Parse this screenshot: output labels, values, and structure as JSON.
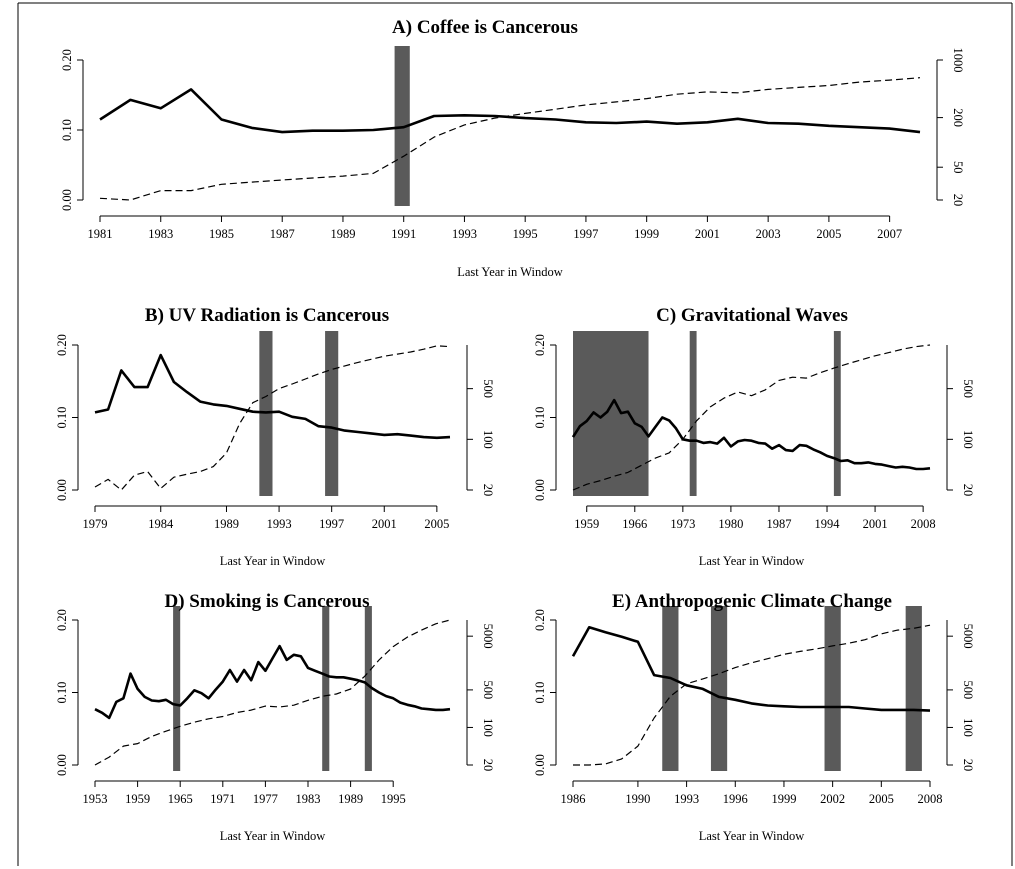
{
  "chart_data": [
    {
      "id": "A",
      "type": "line",
      "title": "A) Coffee is Cancerous",
      "xlabel": "Last Year in Window",
      "xlim": [
        1981,
        2008
      ],
      "xticks": [
        1981,
        1983,
        1985,
        1987,
        1989,
        1991,
        1993,
        1995,
        1997,
        1999,
        2001,
        2003,
        2005,
        2007
      ],
      "ylim": [
        0,
        0.2
      ],
      "yticks": [
        "0.00",
        "0.10",
        "0.20"
      ],
      "y2_scale": "log",
      "y2lim": [
        20,
        1000
      ],
      "y2ticks": [
        "20",
        "50",
        "200",
        "1000"
      ],
      "shaded": [
        [
          1990.7,
          1991.2
        ]
      ],
      "series": [
        {
          "style": "solid",
          "axis": "left",
          "x": [
            1981,
            1982,
            1983,
            1984,
            1985,
            1986,
            1987,
            1988,
            1989,
            1990,
            1991,
            1992,
            1993,
            1994,
            1995,
            1996,
            1997,
            1998,
            1999,
            2000,
            2001,
            2002,
            2003,
            2004,
            2005,
            2006,
            2007,
            2008
          ],
          "y": [
            0.115,
            0.143,
            0.131,
            0.158,
            0.115,
            0.103,
            0.097,
            0.099,
            0.099,
            0.1,
            0.104,
            0.12,
            0.121,
            0.12,
            0.117,
            0.115,
            0.111,
            0.11,
            0.112,
            0.109,
            0.111,
            0.116,
            0.11,
            0.109,
            0.106,
            0.104,
            0.102,
            0.097
          ]
        },
        {
          "style": "dashed",
          "axis": "right",
          "x": [
            1981,
            1982,
            1983,
            1984,
            1985,
            1986,
            1987,
            1988,
            1989,
            1990,
            1991,
            1992,
            1993,
            1994,
            1995,
            1996,
            1997,
            1998,
            1999,
            2000,
            2001,
            2002,
            2003,
            2004,
            2005,
            2006,
            2007,
            2008
          ],
          "y": [
            21,
            20,
            26,
            26,
            31,
            33,
            35,
            37,
            39,
            42,
            68,
            116,
            163,
            197,
            225,
            253,
            285,
            310,
            340,
            385,
            410,
            400,
            440,
            465,
            490,
            540,
            570,
            610
          ]
        }
      ]
    },
    {
      "id": "B",
      "type": "line",
      "title": "B) UV Radiation is Cancerous",
      "xlabel": "Last Year in Window",
      "xlim": [
        1979,
        2006
      ],
      "xticks": [
        1979,
        1984,
        1989,
        1993,
        1997,
        2001,
        2005
      ],
      "ylim": [
        0,
        0.2
      ],
      "yticks": [
        "0.00",
        "0.10",
        "0.20"
      ],
      "y2_scale": "log",
      "y2lim": [
        20,
        2000
      ],
      "y2ticks": [
        "20",
        "100",
        "500"
      ],
      "shaded": [
        [
          1991.5,
          1992.5
        ],
        [
          1996.5,
          1997.5
        ]
      ],
      "series": [
        {
          "style": "solid",
          "axis": "left",
          "x": [
            1979,
            1980,
            1981,
            1982,
            1983,
            1984,
            1985,
            1986,
            1987,
            1988,
            1989,
            1990,
            1991,
            1992,
            1993,
            1994,
            1995,
            1996,
            1997,
            1998,
            1999,
            2000,
            2001,
            2002,
            2003,
            2004,
            2005,
            2006
          ],
          "y": [
            0.107,
            0.111,
            0.165,
            0.142,
            0.142,
            0.186,
            0.149,
            0.135,
            0.122,
            0.118,
            0.116,
            0.112,
            0.108,
            0.107,
            0.108,
            0.101,
            0.098,
            0.088,
            0.086,
            0.082,
            0.08,
            0.078,
            0.076,
            0.077,
            0.075,
            0.073,
            0.072,
            0.073
          ]
        },
        {
          "style": "dashed",
          "axis": "right",
          "x": [
            1979,
            1980,
            1981,
            1982,
            1983,
            1984,
            1985,
            1986,
            1987,
            1988,
            1989,
            1990,
            1991,
            1992,
            1993,
            1994,
            1995,
            1996,
            1997,
            1998,
            1999,
            2000,
            2001,
            2002,
            2003,
            2004,
            2005,
            2006
          ],
          "y": [
            22,
            28,
            20,
            32,
            36,
            21,
            30,
            33,
            36,
            42,
            65,
            165,
            320,
            390,
            500,
            580,
            680,
            800,
            920,
            1030,
            1150,
            1270,
            1400,
            1500,
            1600,
            1750,
            1950,
            1900
          ]
        }
      ]
    },
    {
      "id": "C",
      "type": "line",
      "title": "C) Gravitational Waves",
      "xlabel": "Last Year in Window",
      "xlim": [
        1957,
        2009
      ],
      "xticks": [
        1959,
        1966,
        1973,
        1980,
        1987,
        1994,
        2001,
        2008
      ],
      "ylim": [
        0,
        0.2
      ],
      "yticks": [
        "0.00",
        "0.10",
        "0.20"
      ],
      "y2_scale": "log",
      "y2lim": [
        20,
        2000
      ],
      "y2ticks": [
        "20",
        "100",
        "500"
      ],
      "shaded": [
        [
          1957,
          1968
        ],
        [
          1974,
          1975
        ],
        [
          1995,
          1996
        ]
      ],
      "series": [
        {
          "style": "solid",
          "axis": "left",
          "x": [
            1957,
            1958,
            1959,
            1960,
            1961,
            1962,
            1963,
            1964,
            1965,
            1966,
            1967,
            1968,
            1969,
            1970,
            1971,
            1972,
            1973,
            1974,
            1975,
            1976,
            1977,
            1978,
            1979,
            1980,
            1981,
            1982,
            1983,
            1984,
            1985,
            1986,
            1987,
            1988,
            1989,
            1990,
            1991,
            1992,
            1993,
            1994,
            1995,
            1996,
            1997,
            1998,
            1999,
            2000,
            2001,
            2002,
            2003,
            2004,
            2005,
            2006,
            2007,
            2008,
            2009
          ],
          "y": [
            0.073,
            0.088,
            0.095,
            0.107,
            0.1,
            0.108,
            0.124,
            0.106,
            0.108,
            0.092,
            0.087,
            0.074,
            0.087,
            0.1,
            0.096,
            0.085,
            0.07,
            0.068,
            0.068,
            0.065,
            0.066,
            0.064,
            0.072,
            0.06,
            0.067,
            0.069,
            0.068,
            0.065,
            0.064,
            0.057,
            0.062,
            0.055,
            0.054,
            0.062,
            0.061,
            0.056,
            0.052,
            0.047,
            0.044,
            0.04,
            0.041,
            0.037,
            0.037,
            0.038,
            0.036,
            0.035,
            0.033,
            0.031,
            0.032,
            0.031,
            0.029,
            0.029,
            0.03
          ]
        },
        {
          "style": "dashed",
          "axis": "right",
          "x": [
            1957,
            1959,
            1961,
            1963,
            1965,
            1967,
            1969,
            1971,
            1973,
            1975,
            1977,
            1979,
            1981,
            1983,
            1985,
            1987,
            1989,
            1991,
            1993,
            1995,
            1997,
            1999,
            2001,
            2003,
            2005,
            2007,
            2009
          ],
          "y": [
            20,
            24,
            27,
            31,
            35,
            44,
            55,
            65,
            100,
            180,
            280,
            370,
            450,
            400,
            480,
            650,
            720,
            700,
            830,
            960,
            1100,
            1250,
            1420,
            1570,
            1750,
            1900,
            2000
          ]
        }
      ]
    },
    {
      "id": "D",
      "type": "line",
      "title": "D) Smoking is Cancerous",
      "xlabel": "Last Year in Window",
      "xlim": [
        1953,
        2003
      ],
      "xticks": [
        1953,
        1959,
        1965,
        1971,
        1977,
        1983,
        1989,
        1995
      ],
      "ylim": [
        0,
        0.2
      ],
      "yticks": [
        "0.00",
        "0.10",
        "0.20"
      ],
      "y2_scale": "log",
      "y2lim": [
        20,
        10000
      ],
      "y2ticks": [
        "20",
        "100",
        "500",
        "5000"
      ],
      "shaded": [
        [
          1964,
          1965
        ],
        [
          1985,
          1986
        ],
        [
          1991,
          1992
        ]
      ],
      "series": [
        {
          "style": "solid",
          "axis": "left",
          "x": [
            1953,
            1954,
            1955,
            1956,
            1957,
            1958,
            1959,
            1960,
            1961,
            1962,
            1963,
            1964,
            1965,
            1966,
            1967,
            1968,
            1969,
            1970,
            1971,
            1972,
            1973,
            1974,
            1975,
            1976,
            1977,
            1978,
            1979,
            1980,
            1981,
            1982,
            1983,
            1984,
            1985,
            1986,
            1987,
            1988,
            1989,
            1990,
            1991,
            1992,
            1993,
            1994,
            1995,
            1996,
            1997,
            1998,
            1999,
            2000,
            2001,
            2002,
            2003
          ],
          "y": [
            0.077,
            0.072,
            0.065,
            0.087,
            0.092,
            0.126,
            0.105,
            0.094,
            0.089,
            0.088,
            0.09,
            0.084,
            0.082,
            0.092,
            0.103,
            0.099,
            0.092,
            0.104,
            0.115,
            0.131,
            0.115,
            0.131,
            0.117,
            0.142,
            0.13,
            0.147,
            0.164,
            0.145,
            0.152,
            0.15,
            0.134,
            0.13,
            0.126,
            0.122,
            0.121,
            0.121,
            0.119,
            0.117,
            0.114,
            0.106,
            0.1,
            0.095,
            0.092,
            0.086,
            0.083,
            0.081,
            0.078,
            0.077,
            0.076,
            0.076,
            0.077
          ]
        },
        {
          "style": "dashed",
          "axis": "right",
          "x": [
            1953,
            1955,
            1957,
            1959,
            1961,
            1963,
            1965,
            1967,
            1969,
            1971,
            1973,
            1975,
            1977,
            1979,
            1981,
            1983,
            1985,
            1987,
            1989,
            1991,
            1993,
            1995,
            1997,
            1999,
            2001,
            2003
          ],
          "y": [
            20,
            28,
            45,
            50,
            68,
            85,
            105,
            125,
            145,
            160,
            190,
            210,
            250,
            240,
            260,
            320,
            380,
            420,
            520,
            900,
            1800,
            3200,
            4800,
            6500,
            8500,
            10000
          ]
        }
      ]
    },
    {
      "id": "E",
      "type": "line",
      "title": "E) Anthropogenic Climate Change",
      "xlabel": "Last Year in Window",
      "xlim": [
        1986,
        2008
      ],
      "xticks": [
        1986,
        1990,
        1993,
        1996,
        1999,
        2002,
        2005,
        2008
      ],
      "ylim": [
        0,
        0.2
      ],
      "yticks": [
        "0.00",
        "0.10",
        "0.20"
      ],
      "y2_scale": "log",
      "y2lim": [
        20,
        10000
      ],
      "y2ticks": [
        "20",
        "100",
        "500",
        "5000"
      ],
      "shaded": [
        [
          1991.5,
          1992.5
        ],
        [
          1994.5,
          1995.5
        ],
        [
          2001.5,
          2002.5
        ],
        [
          2006.5,
          2007.5
        ]
      ],
      "series": [
        {
          "style": "solid",
          "axis": "left",
          "x": [
            1986,
            1987,
            1988,
            1989,
            1990,
            1991,
            1992,
            1993,
            1994,
            1995,
            1996,
            1997,
            1998,
            1999,
            2000,
            2001,
            2002,
            2003,
            2004,
            2005,
            2006,
            2007,
            2008
          ],
          "y": [
            0.15,
            0.19,
            0.183,
            0.177,
            0.17,
            0.124,
            0.12,
            0.11,
            0.105,
            0.094,
            0.09,
            0.085,
            0.082,
            0.081,
            0.08,
            0.08,
            0.08,
            0.08,
            0.078,
            0.076,
            0.076,
            0.076,
            0.075
          ]
        },
        {
          "style": "dashed",
          "axis": "right",
          "x": [
            1986,
            1987,
            1988,
            1989,
            1990,
            1991,
            1992,
            1993,
            1994,
            1995,
            1996,
            1997,
            1998,
            1999,
            2000,
            2001,
            2002,
            2003,
            2004,
            2005,
            2006,
            2007,
            2008
          ],
          "y": [
            20,
            20,
            21,
            26,
            45,
            150,
            380,
            650,
            800,
            1000,
            1300,
            1600,
            1900,
            2300,
            2600,
            2900,
            3300,
            3700,
            4300,
            5500,
            6500,
            7000,
            8000
          ]
        }
      ]
    }
  ]
}
